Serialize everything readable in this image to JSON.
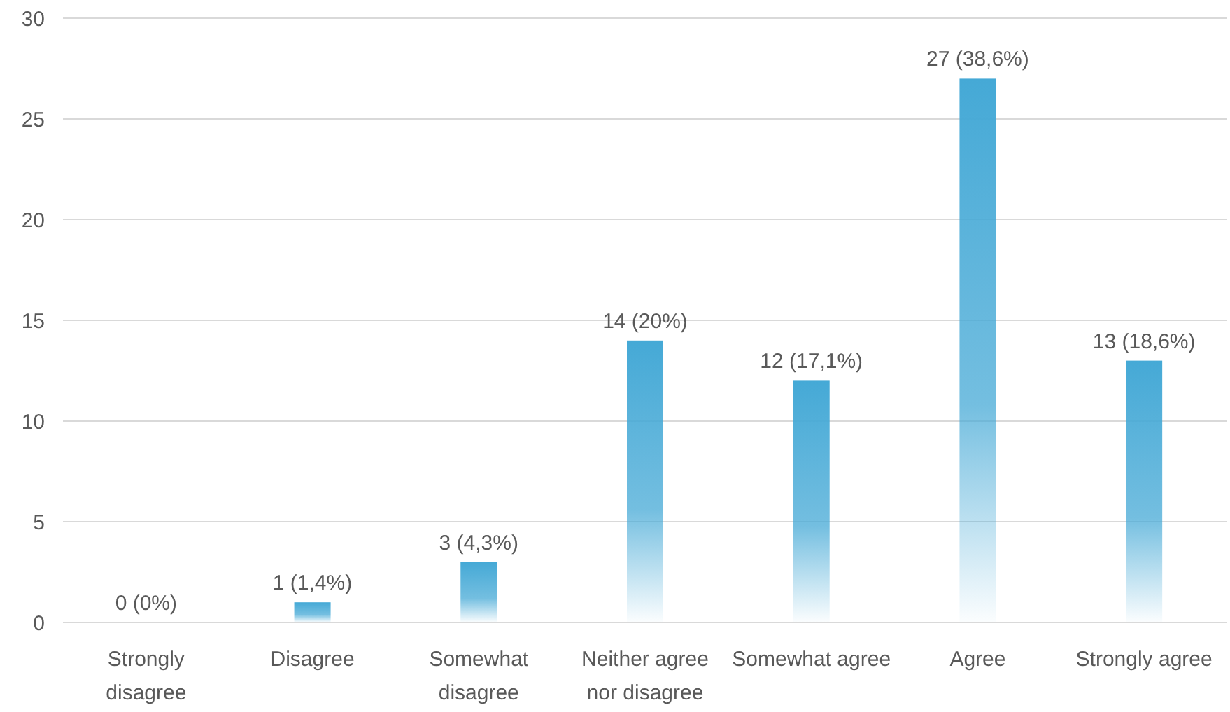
{
  "chart_data": {
    "type": "bar",
    "categories": [
      "Strongly disagree",
      "Disagree",
      "Somewhat disagree",
      "Neither agree nor disagree",
      "Somewhat agree",
      "Agree",
      "Strongly agree"
    ],
    "values": [
      0,
      1,
      3,
      14,
      12,
      27,
      13
    ],
    "value_labels": [
      "0 (0%)",
      "1 (1,4%)",
      "3 (4,3%)",
      "14 (20%)",
      "12 (17,1%)",
      "27 (38,6%)",
      "13 (18,6%)"
    ],
    "color": "#45a9d6",
    "ylim": [
      0,
      30
    ],
    "yticks": [
      0,
      5,
      10,
      15,
      20,
      25,
      30
    ],
    "grid": "y"
  }
}
